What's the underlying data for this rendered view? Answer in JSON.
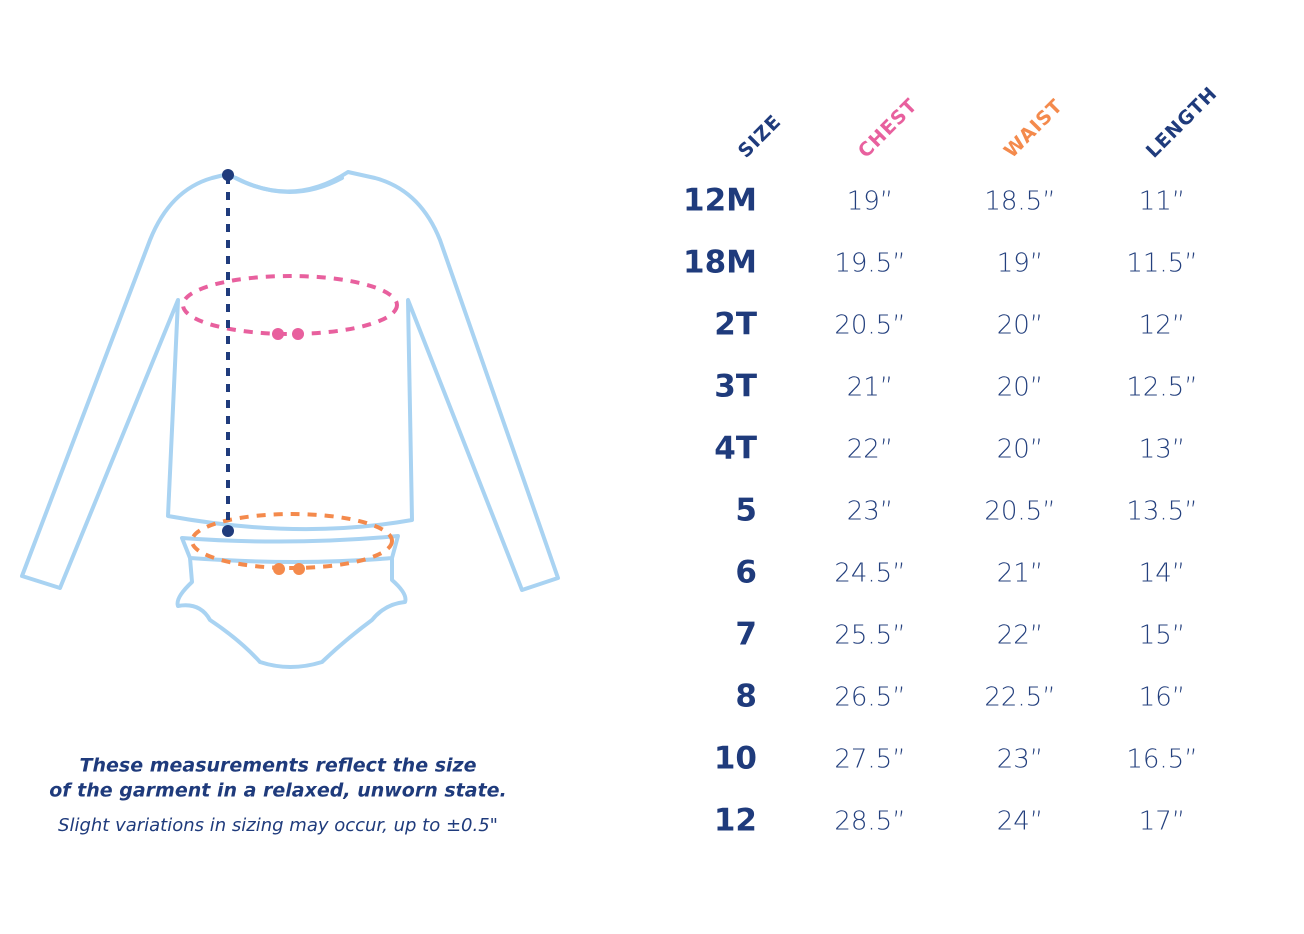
{
  "table": {
    "headers": [
      "SIZE",
      "CHEST",
      "WAIST",
      "LENGTH"
    ],
    "rows": [
      [
        "12M",
        "19”",
        "18.5”",
        "11”"
      ],
      [
        "18M",
        "19.5”",
        "19”",
        "11.5”"
      ],
      [
        "2T",
        "20.5”",
        "20”",
        "12”"
      ],
      [
        "3T",
        "21”",
        "20”",
        "12.5”"
      ],
      [
        "4T",
        "22”",
        "20”",
        "13”"
      ],
      [
        "5",
        "23”",
        "20.5”",
        "13.5”"
      ],
      [
        "6",
        "24.5”",
        "21”",
        "14”"
      ],
      [
        "7",
        "25.5”",
        "22”",
        "15”"
      ],
      [
        "8",
        "26.5”",
        "22.5”",
        "16”"
      ],
      [
        "10",
        "27.5”",
        "23”",
        "16.5”"
      ],
      [
        "12",
        "28.5”",
        "24”",
        "17”"
      ]
    ]
  },
  "notes": {
    "line1": "These measurements reflect the size",
    "line2": "of the garment in a relaxed, unworn state.",
    "line3": "Slight variations in sizing may occur, up to ±0.5\""
  }
}
